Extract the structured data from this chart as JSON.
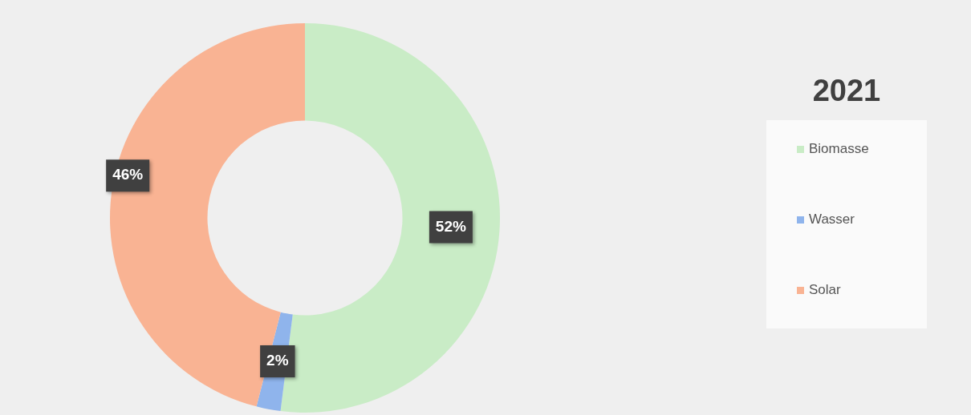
{
  "chart_data": {
    "type": "donut",
    "title": "2021",
    "categories": [
      "Biomasse",
      "Wasser",
      "Solar"
    ],
    "values": [
      52,
      2,
      46
    ],
    "colors": [
      "#c9ecc6",
      "#8fb4ec",
      "#f9b393"
    ],
    "value_labels": [
      "52%",
      "2%",
      "46%"
    ],
    "legend": "right"
  }
}
